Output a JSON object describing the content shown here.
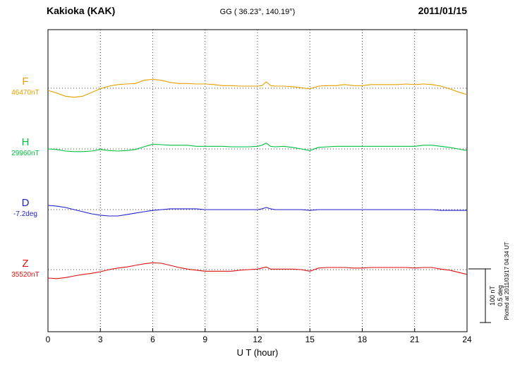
{
  "header": {
    "station": "Kakioka (KAK)",
    "coordinates": "GG ( 36.23°, 140.19°)",
    "date": "2011/01/15"
  },
  "channels": [
    {
      "id": "F",
      "label": "F",
      "value": "46470nT",
      "color": "#e8a000"
    },
    {
      "id": "H",
      "label": "H",
      "value": "29960nT",
      "color": "#00c040"
    },
    {
      "id": "D",
      "label": "D",
      "value": "-7.2deg",
      "color": "#2222cc"
    },
    {
      "id": "Z",
      "label": "Z",
      "value": "35520nT",
      "color": "#dd1111"
    }
  ],
  "x_axis": {
    "label": "U T (hour)",
    "ticks": [
      "0",
      "3",
      "6",
      "9",
      "12",
      "15",
      "18",
      "21",
      "24"
    ]
  },
  "scale_bar": {
    "nt_label": "100 nT",
    "deg_label": "0.5 deg"
  },
  "footer_note": "Plotted at 2011/03/17 04:34 UT",
  "chart_data": {
    "type": "line",
    "title": "Kakioka (KAK) magnetogram 2011/01/15",
    "xlabel": "U T (hour)",
    "x_range": [
      0,
      24
    ],
    "x_ticks": [
      0,
      3,
      6,
      9,
      12,
      15,
      18,
      21,
      24
    ],
    "grid": "dotted vertical at 3h intervals, dotted horizontal baselines per channel",
    "legend_position": "left margin channel labels",
    "scale": {
      "nT_per_bar": 100,
      "deg_per_bar": 0.5
    },
    "x_hours": [
      0,
      0.5,
      1,
      1.5,
      2,
      2.5,
      3,
      3.5,
      4,
      4.5,
      5,
      5.5,
      6,
      6.5,
      7,
      7.5,
      8,
      8.5,
      9,
      9.5,
      10,
      10.5,
      11,
      11.5,
      12,
      12.25,
      12.5,
      12.75,
      13,
      13.5,
      14,
      14.5,
      15,
      15.5,
      16,
      16.5,
      17,
      17.5,
      18,
      18.5,
      19,
      19.5,
      20,
      20.5,
      21,
      21.5,
      22,
      22.5,
      23,
      23.5,
      24
    ],
    "series": [
      {
        "name": "F",
        "unit": "nT",
        "baseline": 46470,
        "offsets": [
          -4,
          -9,
          -15,
          -17,
          -15,
          -8,
          -1,
          4,
          7,
          8,
          9,
          15,
          17,
          15,
          11,
          9,
          9,
          8,
          8,
          7,
          5,
          5,
          4,
          4,
          4,
          5,
          12,
          5,
          4,
          4,
          3,
          1,
          -1,
          4,
          5,
          5,
          7,
          5,
          5,
          7,
          7,
          7,
          7,
          8,
          7,
          8,
          7,
          4,
          -1,
          -7,
          -12
        ]
      },
      {
        "name": "H",
        "unit": "nT",
        "baseline": 29960,
        "offsets": [
          0,
          -1,
          -4,
          -5,
          -5,
          -4,
          -1,
          -3,
          -4,
          -3,
          -1,
          4,
          9,
          8,
          7,
          7,
          7,
          5,
          5,
          5,
          5,
          4,
          4,
          4,
          5,
          7,
          11,
          5,
          4,
          5,
          3,
          0,
          -3,
          3,
          4,
          5,
          5,
          5,
          5,
          5,
          5,
          5,
          5,
          5,
          5,
          7,
          7,
          5,
          3,
          0,
          -3
        ]
      },
      {
        "name": "D",
        "unit": "deg",
        "baseline": -7.2,
        "offsets": [
          0.04,
          0.033,
          0.02,
          0,
          -0.02,
          -0.04,
          -0.053,
          -0.06,
          -0.06,
          -0.047,
          -0.033,
          -0.02,
          -0.007,
          0,
          0.007,
          0.007,
          0.007,
          0.007,
          0,
          0,
          0,
          0,
          0,
          0,
          0,
          0.007,
          0.02,
          0.007,
          0,
          0,
          0,
          0,
          -0.007,
          0,
          0,
          0,
          0,
          0,
          0,
          0,
          0,
          0,
          0,
          0,
          0,
          0,
          0,
          -0.007,
          -0.007,
          -0.007,
          -0.007
        ]
      },
      {
        "name": "Z",
        "unit": "nT",
        "baseline": 35520,
        "offsets": [
          -16,
          -17,
          -15,
          -12,
          -9,
          -7,
          -4,
          0,
          3,
          5,
          8,
          11,
          13,
          12,
          8,
          4,
          1,
          -1,
          -3,
          -3,
          -3,
          -3,
          -1,
          0,
          1,
          3,
          5,
          1,
          1,
          1,
          1,
          0,
          -3,
          3,
          4,
          4,
          4,
          3,
          3,
          4,
          4,
          4,
          4,
          4,
          3,
          4,
          4,
          1,
          -1,
          -5,
          -9
        ]
      }
    ]
  }
}
